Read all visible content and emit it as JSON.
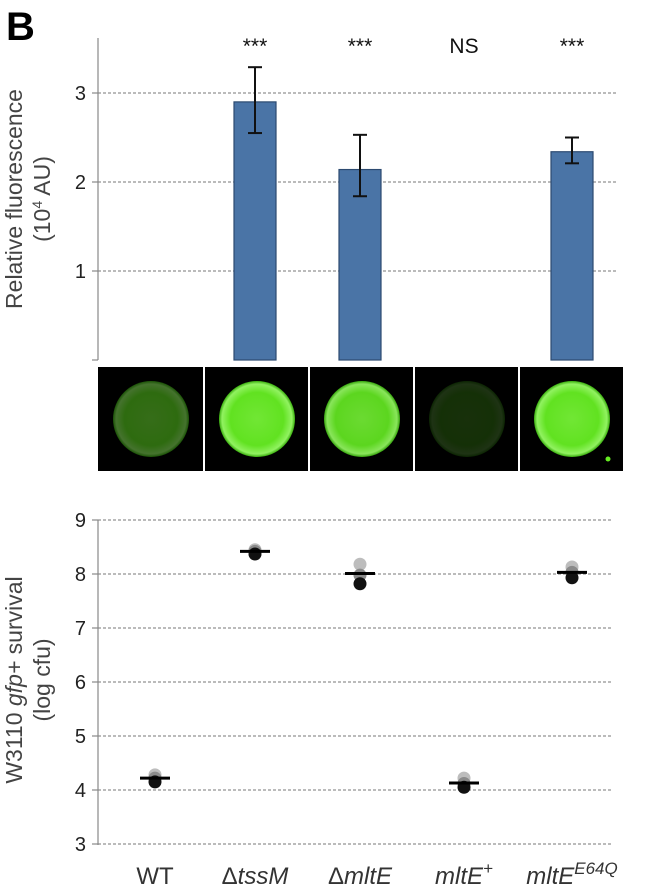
{
  "panel_label": "B",
  "chart_data": [
    {
      "type": "bar",
      "categories": [
        "WT",
        "ΔtssM",
        "ΔmltE",
        "mltE+",
        "mltEE64Q"
      ],
      "values": [
        0,
        2.9,
        2.14,
        0,
        2.34
      ],
      "error_low": [
        null,
        2.55,
        1.84,
        null,
        2.21
      ],
      "error_high": [
        null,
        3.29,
        2.53,
        null,
        2.5
      ],
      "significance": [
        "",
        "***",
        "***",
        "NS",
        "***"
      ],
      "ylabel_line1": "Relative fluorescence",
      "ylabel_line2_pre": "(10",
      "ylabel_line2_sup": "4",
      "ylabel_line2_post": " AU)",
      "yticks": [
        1,
        2,
        3
      ],
      "ylim": [
        0,
        3.8
      ],
      "grid": true,
      "bar_color": "#4a74a6",
      "spot_brightness": [
        0.45,
        0.95,
        0.9,
        0.2,
        0.95
      ],
      "spot_color": "#33dd11"
    },
    {
      "type": "scatter",
      "categories": [
        "WT",
        "ΔtssM",
        "ΔmltE",
        "mltE+",
        "mltEE64Q"
      ],
      "points": [
        [
          4.28,
          4.22,
          4.15
        ],
        [
          8.45,
          8.42,
          8.37
        ],
        [
          8.18,
          7.98,
          7.82
        ],
        [
          4.22,
          4.12,
          4.05
        ],
        [
          8.13,
          8.03,
          7.93
        ]
      ],
      "means": [
        4.22,
        8.42,
        8.01,
        4.13,
        8.03
      ],
      "ylabel_pre": "W3110 ",
      "ylabel_italic": "gfp+",
      "ylabel_post": " survival",
      "ylabel_line2": "(log cfu)",
      "yticks": [
        3,
        4,
        5,
        6,
        7,
        8,
        9
      ],
      "ylim": [
        3,
        9
      ],
      "grid": true
    }
  ],
  "xlabels": [
    {
      "delta": "",
      "italic": "",
      "text": "WT",
      "sup": ""
    },
    {
      "delta": "Δ",
      "italic": "tssM",
      "text": "",
      "sup": ""
    },
    {
      "delta": "Δ",
      "italic": "mltE",
      "text": "",
      "sup": ""
    },
    {
      "delta": "",
      "italic": "mltE",
      "text": "",
      "sup": "+"
    },
    {
      "delta": "",
      "italic": "mltE",
      "text": "",
      "sup": "E64Q"
    }
  ]
}
